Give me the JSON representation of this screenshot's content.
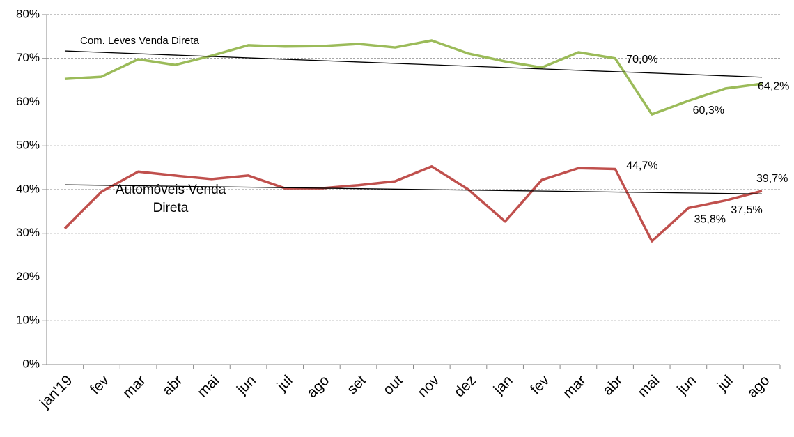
{
  "chart_data": {
    "type": "line",
    "categories": [
      "jan'19",
      "fev",
      "mar",
      "abr",
      "mai",
      "jun",
      "jul",
      "ago",
      "set",
      "out",
      "nov",
      "dez",
      "jan",
      "fev",
      "mar",
      "abr",
      "mai",
      "jun",
      "jul",
      "ago"
    ],
    "series": [
      {
        "name": "Com. Leves Venda Direta",
        "color": "#9bbb59",
        "values": [
          65.3,
          65.8,
          69.8,
          68.5,
          70.6,
          73.0,
          72.7,
          72.8,
          73.3,
          72.5,
          74.1,
          71.1,
          69.3,
          67.9,
          71.4,
          70.0,
          57.2,
          60.3,
          63.1,
          64.2
        ],
        "value_labels": [
          null,
          null,
          null,
          null,
          null,
          null,
          null,
          null,
          null,
          null,
          null,
          null,
          null,
          null,
          null,
          "70,0%",
          null,
          "60,3%",
          null,
          "64,2%"
        ],
        "trend": [
          71.7,
          65.7
        ]
      },
      {
        "name": "Automóveis Venda Direta",
        "color": "#c0504d",
        "values": [
          31.1,
          39.5,
          44.1,
          43.2,
          42.4,
          43.2,
          40.3,
          40.3,
          41.0,
          41.9,
          45.3,
          40.0,
          32.7,
          42.2,
          44.9,
          44.7,
          28.2,
          35.8,
          37.5,
          39.7
        ],
        "value_labels": [
          null,
          null,
          null,
          null,
          null,
          null,
          null,
          null,
          null,
          null,
          null,
          null,
          null,
          null,
          null,
          "44,7%",
          null,
          "35,8%",
          "37,5%",
          "39,7%"
        ],
        "trend": [
          41.1,
          39.0
        ]
      }
    ],
    "ylim": [
      0,
      80
    ],
    "yticks": [
      {
        "value": 0,
        "label": "0%"
      },
      {
        "value": 10,
        "label": "10%"
      },
      {
        "value": 20,
        "label": "20%"
      },
      {
        "value": 30,
        "label": "30%"
      },
      {
        "value": 40,
        "label": "40%"
      },
      {
        "value": 50,
        "label": "50%"
      },
      {
        "value": 60,
        "label": "60%"
      },
      {
        "value": 70,
        "label": "70%"
      },
      {
        "value": 80,
        "label": "80%"
      }
    ],
    "grid": true
  }
}
